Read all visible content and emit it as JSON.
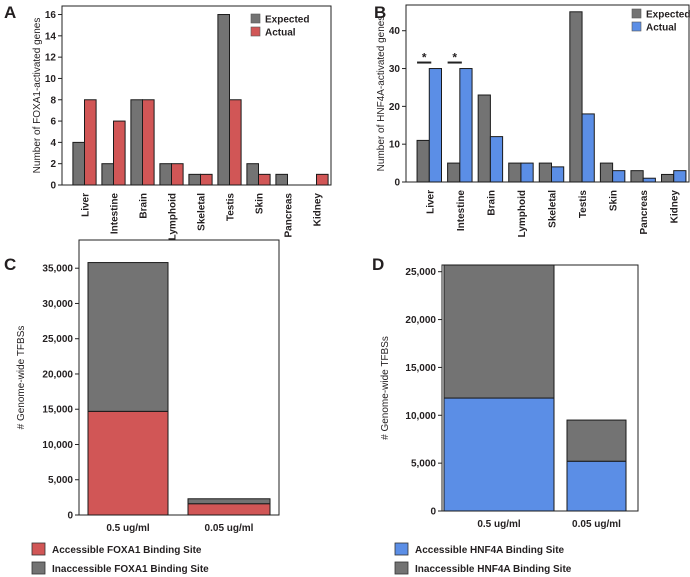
{
  "colors": {
    "expected": "#737373",
    "foxa1": "#d15656",
    "hnf4a": "#5b8ee6",
    "edge": "#1a1a1a"
  },
  "chart_data": [
    {
      "panel": "A",
      "type": "bar",
      "ylabel": "Number of FOXA1-activated genes",
      "ylim": [
        0,
        16.8
      ],
      "yticks": [
        0,
        2,
        4,
        6,
        8,
        10,
        12,
        14,
        16
      ],
      "categories": [
        "Liver",
        "Intestine",
        "Brain",
        "Lymphoid",
        "Skeletal",
        "Testis",
        "Skin",
        "Pancreas",
        "Kidney"
      ],
      "series": [
        {
          "name": "Expected",
          "values": [
            4,
            2,
            8,
            2,
            1,
            16,
            2,
            1,
            0
          ]
        },
        {
          "name": "Actual",
          "values": [
            8,
            6,
            8,
            2,
            1,
            8,
            1,
            0,
            1
          ]
        }
      ],
      "legend": "top-right"
    },
    {
      "panel": "B",
      "type": "bar",
      "ylabel": "Number of HNF4A-activated genes",
      "ylim": [
        0,
        46.8
      ],
      "yticks": [
        0,
        10,
        20,
        30,
        40
      ],
      "categories": [
        "Liver",
        "Intestine",
        "Brain",
        "Lymphoid",
        "Skeletal",
        "Testis",
        "Skin",
        "Pancreas",
        "Kidney"
      ],
      "series": [
        {
          "name": "Expected",
          "values": [
            11,
            5,
            23,
            5,
            5,
            45,
            5,
            3,
            2
          ]
        },
        {
          "name": "Actual",
          "values": [
            30,
            30,
            12,
            5,
            4,
            18,
            3,
            1,
            3
          ]
        }
      ],
      "legend": "top-right",
      "annotations": [
        {
          "category": "Liver",
          "text": "*"
        },
        {
          "category": "Intestine",
          "text": "*"
        }
      ]
    },
    {
      "panel": "C",
      "type": "bar",
      "stacked": true,
      "ylabel": "# Genome-wide TFBSs",
      "ylim": [
        0,
        39000
      ],
      "yticks": [
        0,
        5000,
        10000,
        15000,
        20000,
        25000,
        30000,
        35000
      ],
      "ytick_labels": [
        "0",
        "5,000",
        "10,000",
        "15,000",
        "20,000",
        "25,000",
        "30,000",
        "35,000"
      ],
      "categories": [
        "0.5 ug/ml",
        "0.05 ug/ml"
      ],
      "series": [
        {
          "name": "Accessible FOXA1 Binding Site",
          "values": [
            14700,
            1600
          ]
        },
        {
          "name": "Inaccessible FOXA1 Binding Site",
          "values": [
            21100,
            700
          ]
        }
      ],
      "legend": "bottom"
    },
    {
      "panel": "D",
      "type": "bar",
      "stacked": true,
      "ylabel": "# Genome-wide TFBSs",
      "ylim": [
        0,
        25700
      ],
      "yticks": [
        0,
        5000,
        10000,
        15000,
        20000,
        25000
      ],
      "ytick_labels": [
        "0",
        "5,000",
        "10,000",
        "15,000",
        "20,000",
        "25,000"
      ],
      "categories": [
        "0.5 ug/ml",
        "0.05 ug/ml"
      ],
      "series": [
        {
          "name": "Accessible HNF4A Binding Site",
          "values": [
            11800,
            5200
          ]
        },
        {
          "name": "Inaccessible HNF4A Binding Site",
          "values": [
            13900,
            4300
          ]
        }
      ],
      "legend": "bottom"
    }
  ]
}
